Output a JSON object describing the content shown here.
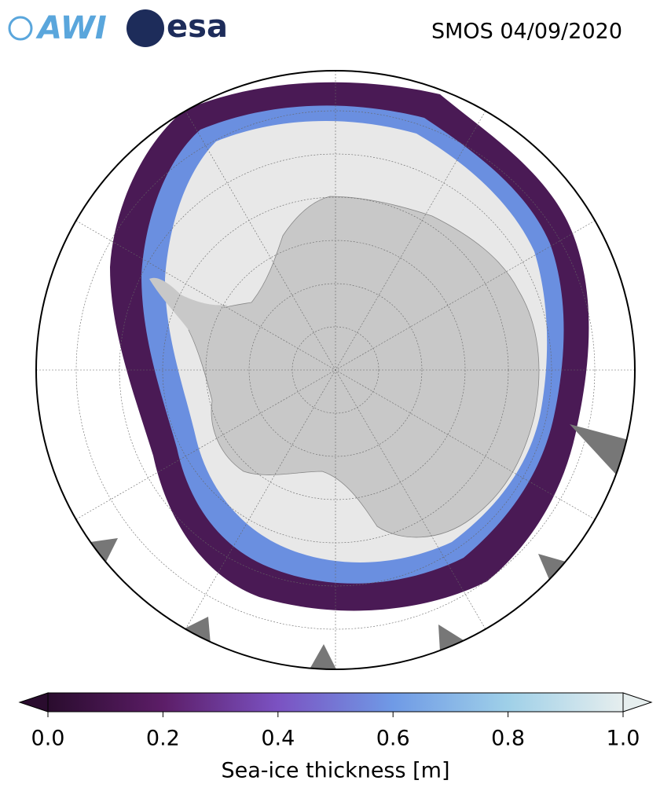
{
  "header": {
    "logos": [
      "AWI",
      "esa"
    ],
    "title": "SMOS 04/09/2020"
  },
  "colorbar": {
    "label": "Sea-ice thickness [m]",
    "lim": [
      0,
      1
    ],
    "ticks": [
      {
        "value": 0,
        "label": "0.0"
      },
      {
        "value": 0.2,
        "label": "0.2"
      },
      {
        "value": 0.4,
        "label": "0.4"
      },
      {
        "value": 0.6,
        "label": "0.6"
      },
      {
        "value": 0.8,
        "label": "0.8"
      },
      {
        "value": 1,
        "label": "1.0"
      }
    ],
    "colors": [
      "#2a0c2e",
      "#5c1d67",
      "#7b52c2",
      "#6f9ae6",
      "#9fd0e8",
      "#e6eeee"
    ]
  }
}
